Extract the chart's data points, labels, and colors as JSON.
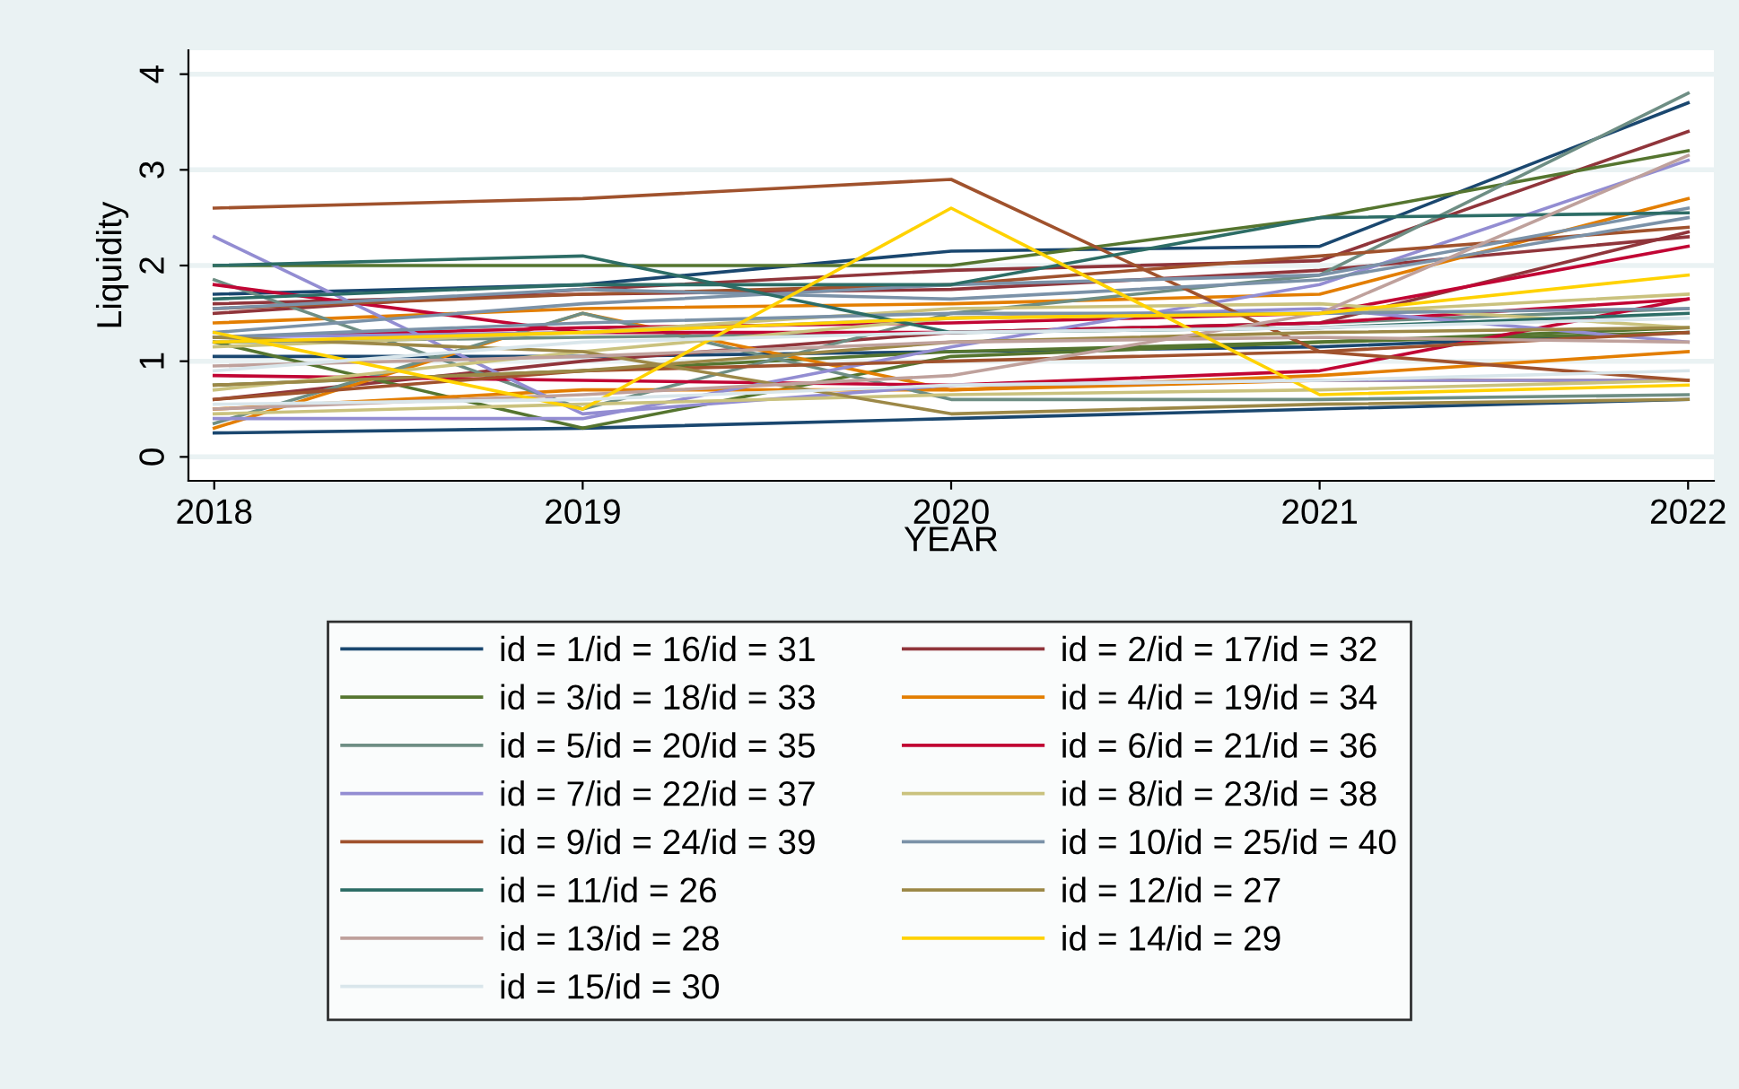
{
  "chart_data": {
    "type": "line",
    "xlabel": "YEAR",
    "ylabel": "Liquidity",
    "x": [
      2018,
      2019,
      2020,
      2021,
      2022
    ],
    "xlim": [
      2017.93,
      2022.07
    ],
    "ylim": [
      -0.25,
      4.25
    ],
    "xticks": [
      2018,
      2019,
      2020,
      2021,
      2022
    ],
    "yticks": [
      0,
      1,
      2,
      3,
      4
    ],
    "grid": "y",
    "legend": "bottom",
    "series": [
      {
        "name": "id = 1/id = 16/id = 31",
        "color": "#1a476f",
        "values": [
          1.7,
          1.8,
          2.15,
          2.2,
          3.7
        ]
      },
      {
        "color": "#1a476f",
        "values": [
          0.25,
          0.3,
          0.4,
          0.5,
          0.6
        ]
      },
      {
        "color": "#1a476f",
        "values": [
          1.05,
          1.05,
          1.1,
          1.15,
          1.3
        ]
      },
      {
        "name": "id = 2/id = 17/id = 32",
        "color": "#90353b",
        "values": [
          1.5,
          1.75,
          1.95,
          2.05,
          3.4
        ]
      },
      {
        "color": "#90353b",
        "values": [
          0.6,
          1.0,
          1.3,
          1.4,
          2.35
        ]
      },
      {
        "color": "#90353b",
        "values": [
          1.6,
          1.7,
          1.75,
          1.95,
          2.3
        ]
      },
      {
        "name": "id = 3/id = 18/id = 33",
        "color": "#55752f",
        "values": [
          2.0,
          2.0,
          2.0,
          2.5,
          3.2
        ]
      },
      {
        "color": "#55752f",
        "values": [
          1.2,
          0.3,
          1.05,
          1.2,
          1.3
        ]
      },
      {
        "color": "#55752f",
        "values": [
          0.75,
          0.9,
          1.1,
          1.2,
          1.35
        ]
      },
      {
        "name": "id = 4/id = 19/id = 34",
        "color": "#e37e00",
        "values": [
          0.3,
          1.5,
          0.7,
          0.8,
          0.8
        ]
      },
      {
        "color": "#e37e00",
        "values": [
          1.4,
          1.55,
          1.6,
          1.7,
          2.7
        ]
      },
      {
        "color": "#e37e00",
        "values": [
          0.5,
          0.7,
          0.7,
          0.85,
          1.1
        ]
      },
      {
        "name": "id = 5/id = 20/id = 35",
        "color": "#6e8e84",
        "values": [
          1.85,
          0.5,
          1.5,
          1.9,
          3.8
        ]
      },
      {
        "color": "#6e8e84",
        "values": [
          0.35,
          1.5,
          0.6,
          0.6,
          0.65
        ]
      },
      {
        "color": "#6e8e84",
        "values": [
          1.2,
          1.25,
          1.3,
          1.4,
          1.55
        ]
      },
      {
        "name": "id = 6/id = 21/id = 36",
        "color": "#c10534",
        "values": [
          1.8,
          1.3,
          1.3,
          1.4,
          1.65
        ]
      },
      {
        "color": "#c10534",
        "values": [
          1.25,
          1.35,
          1.4,
          1.5,
          2.2
        ]
      },
      {
        "color": "#c10534",
        "values": [
          0.85,
          0.8,
          0.75,
          0.9,
          1.65
        ]
      },
      {
        "name": "id = 7/id = 22/id = 37",
        "color": "#938dd2",
        "values": [
          2.3,
          0.45,
          0.75,
          0.8,
          0.8
        ]
      },
      {
        "color": "#938dd2",
        "values": [
          0.4,
          0.4,
          1.15,
          1.8,
          3.1
        ]
      },
      {
        "color": "#938dd2",
        "values": [
          1.25,
          1.3,
          1.45,
          1.55,
          1.2
        ]
      },
      {
        "name": "id = 8/id = 23/id = 38",
        "color": "#cac27e",
        "values": [
          0.7,
          1.1,
          1.45,
          1.5,
          1.7
        ]
      },
      {
        "color": "#cac27e",
        "values": [
          1.15,
          1.3,
          1.55,
          1.6,
          1.35
        ]
      },
      {
        "color": "#cac27e",
        "values": [
          0.45,
          0.55,
          0.65,
          0.7,
          0.8
        ]
      },
      {
        "name": "id = 9/id = 24/id = 39",
        "color": "#a0522d",
        "values": [
          2.6,
          2.7,
          2.9,
          1.1,
          0.8
        ]
      },
      {
        "color": "#a0522d",
        "values": [
          1.55,
          1.7,
          1.8,
          2.1,
          2.4
        ]
      },
      {
        "color": "#a0522d",
        "values": [
          0.6,
          0.9,
          1.0,
          1.1,
          1.3
        ]
      },
      {
        "name": "id = 10/id = 25/id = 40",
        "color": "#7b92a8",
        "values": [
          1.3,
          1.6,
          1.8,
          1.9,
          2.6
        ]
      },
      {
        "color": "#7b92a8",
        "values": [
          1.25,
          1.4,
          1.5,
          1.5,
          1.55
        ]
      },
      {
        "color": "#7b92a8",
        "values": [
          1.55,
          1.75,
          1.65,
          1.85,
          2.5
        ]
      },
      {
        "name": "id = 11/id = 26",
        "color": "#2d6d66",
        "values": [
          2.0,
          2.1,
          1.3,
          1.35,
          1.5
        ]
      },
      {
        "color": "#2d6d66",
        "values": [
          1.65,
          1.8,
          1.8,
          2.5,
          2.55
        ]
      },
      {
        "name": "id = 12/id = 27",
        "color": "#9c8847",
        "values": [
          1.25,
          1.1,
          0.45,
          0.55,
          0.6
        ]
      },
      {
        "color": "#9c8847",
        "values": [
          0.75,
          0.9,
          1.2,
          1.3,
          1.35
        ]
      },
      {
        "name": "id = 13/id = 28",
        "color": "#bfa19c",
        "values": [
          0.5,
          0.65,
          0.85,
          1.5,
          3.15
        ]
      },
      {
        "color": "#bfa19c",
        "values": [
          0.95,
          1.05,
          1.2,
          1.25,
          1.2
        ]
      },
      {
        "name": "id = 14/id = 29",
        "color": "#ffd200",
        "values": [
          1.3,
          0.5,
          2.6,
          0.65,
          0.75
        ]
      },
      {
        "color": "#ffd200",
        "values": [
          1.2,
          1.3,
          1.45,
          1.5,
          1.9
        ]
      },
      {
        "name": "id = 15/id = 30",
        "color": "#d9e6eb",
        "values": [
          0.9,
          1.2,
          1.3,
          1.35,
          1.45
        ]
      },
      {
        "color": "#d9e6eb",
        "values": [
          0.55,
          0.6,
          0.75,
          0.8,
          0.9
        ]
      }
    ]
  }
}
